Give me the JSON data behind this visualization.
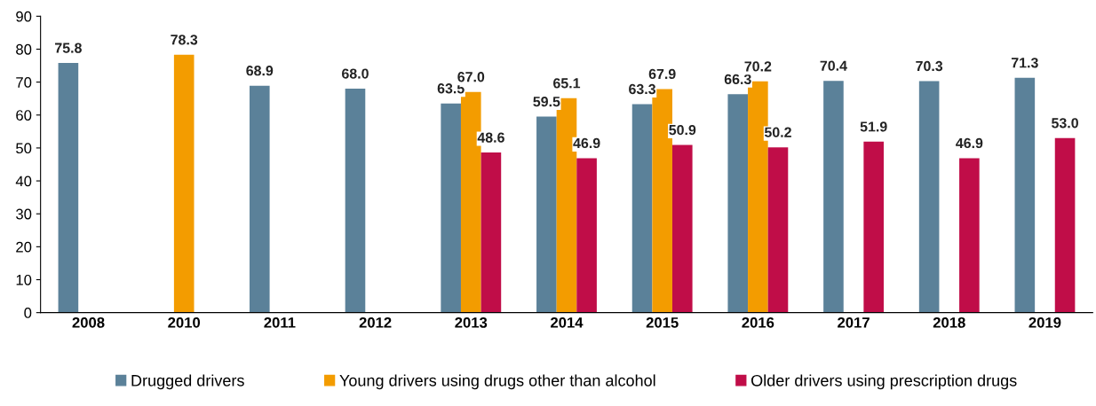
{
  "chart_data": {
    "type": "bar",
    "categories": [
      "2008",
      "2010",
      "2011",
      "2012",
      "2013",
      "2014",
      "2015",
      "2016",
      "2017",
      "2018",
      "2019"
    ],
    "series": [
      {
        "name": "Drugged drivers",
        "color": "#5b8199",
        "values": [
          75.8,
          null,
          68.9,
          68.0,
          63.5,
          59.5,
          63.3,
          66.3,
          70.4,
          70.3,
          71.3
        ],
        "value_labels": [
          "75.8",
          null,
          "68.9",
          "68.0",
          "63.5",
          "59.5",
          "63.3",
          "66.3",
          "70.4",
          "70.3",
          "71.3"
        ]
      },
      {
        "name": "Young drivers using drugs other than alcohol",
        "color": "#f39c00",
        "values": [
          null,
          78.3,
          null,
          null,
          67.0,
          65.1,
          67.9,
          70.2,
          null,
          null,
          null
        ],
        "value_labels": [
          null,
          "78.3",
          null,
          null,
          "67.0",
          "65.1",
          "67.9",
          "70.2",
          null,
          null,
          null
        ]
      },
      {
        "name": "Older drivers using prescription drugs",
        "color": "#c00d48",
        "values": [
          null,
          null,
          null,
          null,
          48.6,
          46.9,
          50.9,
          50.2,
          51.9,
          46.9,
          53.0
        ],
        "value_labels": [
          null,
          null,
          null,
          null,
          "48.6",
          "46.9",
          "50.9",
          "50.2",
          "51.9",
          "46.9",
          "53.0"
        ]
      }
    ],
    "ylim": [
      0,
      90
    ],
    "yticks": [
      0,
      10,
      20,
      30,
      40,
      50,
      60,
      70,
      80,
      90
    ],
    "grid": false,
    "legend": "bottom"
  }
}
